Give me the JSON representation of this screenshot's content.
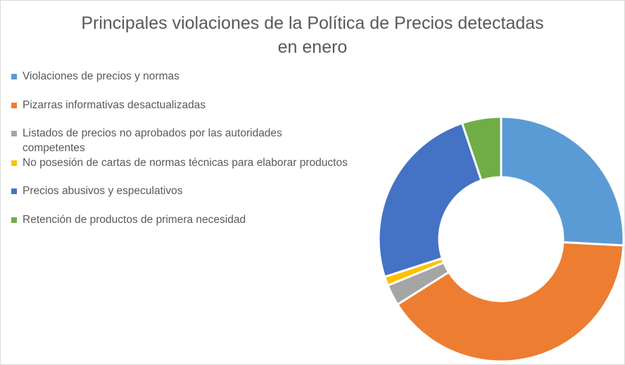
{
  "chart_data": {
    "type": "pie",
    "variant": "doughnut",
    "title_lines": [
      "Principales violaciones de la Política de Precios detectadas",
      "en enero"
    ],
    "legend_position": "left",
    "categories": [
      "Violaciones de precios y normas",
      "Pizarras informativas desactualizadas",
      "Listados de precios no aprobados por las autoridades competentes",
      "No posesión de cartas de normas técnicas para elaborar productos",
      "Precios abusivos y especulativos",
      "Retención de productos de primera necesidad"
    ],
    "values": [
      26.0,
      40.5,
      2.8,
      1.2,
      25.0,
      5.2
    ],
    "colors": [
      "#5B9BD5",
      "#ED7D31",
      "#A5A5A5",
      "#FFC000",
      "#4472C4",
      "#70AD47"
    ]
  }
}
